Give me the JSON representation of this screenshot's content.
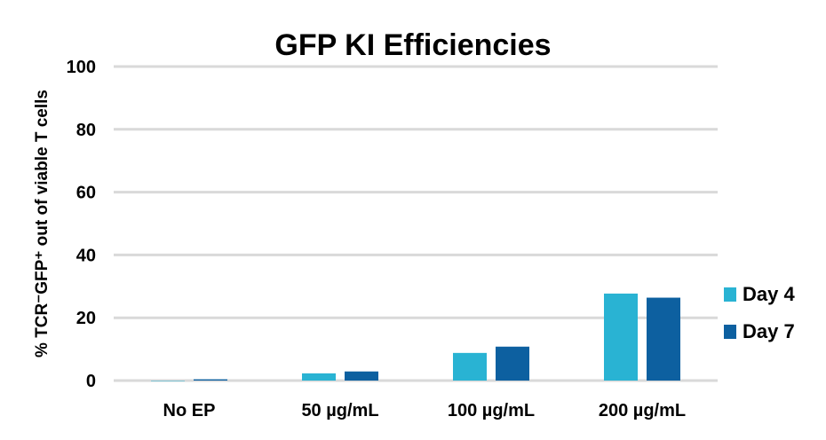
{
  "chart_data": {
    "type": "bar",
    "title": "GFP KI Efficiencies",
    "xlabel": "",
    "ylabel": "% TCR⁻GFP⁺ out of viable T cells",
    "ylim": [
      0,
      100
    ],
    "yticks": [
      0,
      20,
      40,
      60,
      80,
      100
    ],
    "grid": true,
    "legend_position": "right",
    "categories": [
      "No EP",
      "50 µg/mL",
      "100 µg/mL",
      "200 µg/mL"
    ],
    "series": [
      {
        "name": "Day 4",
        "color": "#29B3D3",
        "values": [
          0,
          2.3,
          8.8,
          27.7
        ]
      },
      {
        "name": "Day 7",
        "color": "#0D60A0",
        "values": [
          0.4,
          2.9,
          10.8,
          26.4
        ]
      }
    ]
  }
}
